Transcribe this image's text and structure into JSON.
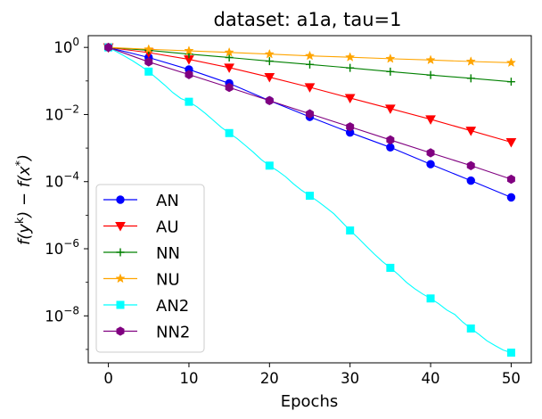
{
  "chart_data": {
    "type": "line",
    "title": "dataset: a1a, tau=1",
    "xlabel": "Epochs",
    "ylabel": "f(y^k) − f(x^*)",
    "yscale": "log",
    "xlim": [
      -2.5,
      52.5
    ],
    "ylim_exp": [
      -9.4,
      0.35
    ],
    "x_ticks": [
      0,
      10,
      20,
      30,
      40,
      50
    ],
    "y_ticks": [
      {
        "exp": 0,
        "base": "10",
        "sup": "0"
      },
      {
        "exp": -2,
        "base": "10",
        "sup": "−2"
      },
      {
        "exp": -4,
        "base": "10",
        "sup": "−4"
      },
      {
        "exp": -6,
        "base": "10",
        "sup": "−6"
      },
      {
        "exp": -8,
        "base": "10",
        "sup": "−8"
      }
    ],
    "legend_position": "lower-left",
    "series": [
      {
        "name": "AN",
        "color": "#0000ff",
        "marker": "circle",
        "mark_every": 5,
        "x": [
          0,
          5,
          10,
          15,
          20,
          25,
          30,
          35,
          40,
          45,
          50
        ],
        "y": [
          1,
          0.5,
          0.22,
          0.085,
          0.026,
          0.0085,
          0.0029,
          0.00105,
          0.00033,
          0.000107,
          3.4e-05
        ]
      },
      {
        "name": "AU",
        "color": "#ff0000",
        "marker": "triangle-down",
        "mark_every": 5,
        "x": [
          0,
          5,
          10,
          15,
          20,
          25,
          30,
          35,
          40,
          45,
          50
        ],
        "y": [
          1,
          0.7,
          0.44,
          0.25,
          0.13,
          0.065,
          0.031,
          0.015,
          0.0072,
          0.0033,
          0.0015
        ]
      },
      {
        "name": "NN",
        "color": "#008000",
        "marker": "plus",
        "mark_every": 5,
        "x": [
          0,
          5,
          10,
          15,
          20,
          25,
          30,
          35,
          40,
          45,
          50
        ],
        "y": [
          1,
          0.82,
          0.63,
          0.5,
          0.39,
          0.31,
          0.245,
          0.19,
          0.15,
          0.12,
          0.095
        ]
      },
      {
        "name": "NU",
        "color": "#ffa500",
        "marker": "star",
        "mark_every": 5,
        "x": [
          0,
          5,
          10,
          15,
          20,
          25,
          30,
          35,
          40,
          45,
          50
        ],
        "y": [
          1,
          0.88,
          0.79,
          0.71,
          0.63,
          0.56,
          0.51,
          0.46,
          0.42,
          0.38,
          0.35
        ]
      },
      {
        "name": "AN2",
        "color": "#00ffff",
        "marker": "square",
        "mark_every": 5,
        "x": [
          0,
          1,
          2,
          3,
          4,
          5,
          6,
          7,
          8,
          9,
          10,
          11,
          12,
          13,
          14,
          15,
          16,
          17,
          18,
          19,
          20,
          21,
          22,
          23,
          24,
          25,
          26,
          27,
          28,
          29,
          30,
          31,
          32,
          33,
          34,
          35,
          36,
          37,
          38,
          39,
          40,
          41,
          42,
          43,
          44,
          45,
          46,
          47,
          48,
          49,
          50
        ],
        "y": [
          1,
          0.75,
          0.55,
          0.4,
          0.28,
          0.19,
          0.12,
          0.075,
          0.045,
          0.03,
          0.024,
          0.017,
          0.011,
          0.0068,
          0.0042,
          0.0028,
          0.0019,
          0.0012,
          0.00075,
          0.00045,
          0.0003,
          0.00021,
          0.00014,
          8.5e-05,
          5.5e-05,
          3.8e-05,
          2.6e-05,
          1.7e-05,
          1.1e-05,
          6.2e-06,
          3.5e-06,
          2.1e-06,
          1.2e-06,
          7e-07,
          4.2e-07,
          2.7e-07,
          1.7e-07,
          1e-07,
          6.5e-08,
          4.5e-08,
          3.3e-08,
          2.3e-08,
          1.5e-08,
          1.1e-08,
          6.5e-09,
          4.2e-09,
          2.8e-09,
          1.8e-09,
          1.3e-09,
          9.6e-10,
          8e-10
        ]
      },
      {
        "name": "NN2",
        "color": "#800080",
        "marker": "hexagon",
        "mark_every": 5,
        "x": [
          0,
          5,
          10,
          15,
          20,
          25,
          30,
          35,
          40,
          45,
          50
        ],
        "y": [
          1,
          0.37,
          0.155,
          0.064,
          0.026,
          0.0105,
          0.0043,
          0.00175,
          0.00072,
          0.0003,
          0.000118
        ]
      }
    ]
  }
}
